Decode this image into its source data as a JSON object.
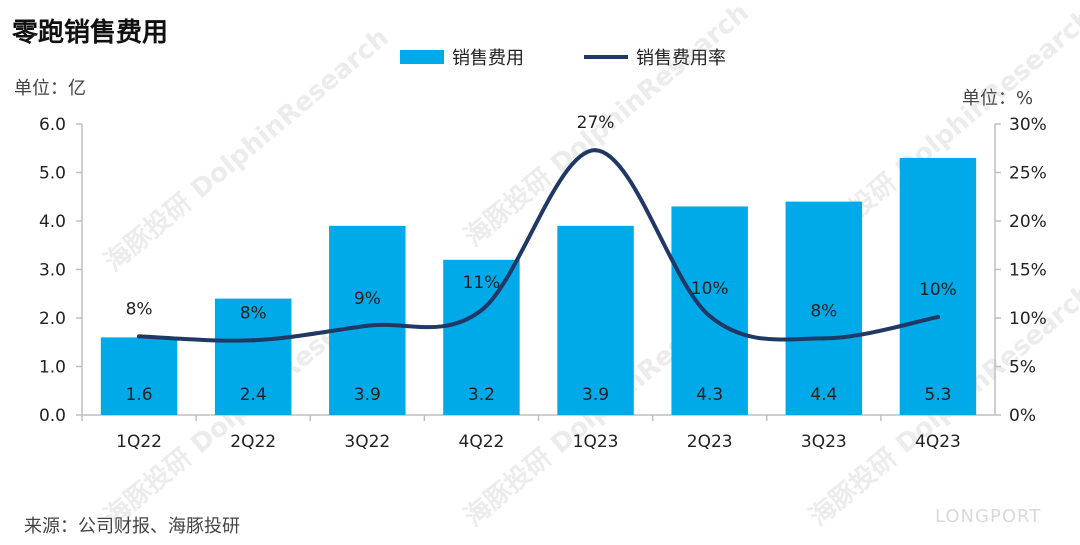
{
  "title": "零跑销售费用",
  "unit_left": "单位：亿",
  "unit_right": "单位：%",
  "source": "来源：公司财报、海豚投研",
  "watermark": "海豚投研 DolphinResearch",
  "brand": "LONGPORT",
  "legend": {
    "bar": "销售费用",
    "line": "销售费用率"
  },
  "colors": {
    "bar": "#00a9e8",
    "line": "#1f3864",
    "axis": "#bfbfbf"
  },
  "chart_data": {
    "type": "bar",
    "categories": [
      "1Q22",
      "2Q22",
      "3Q22",
      "4Q22",
      "1Q23",
      "2Q23",
      "3Q23",
      "4Q23"
    ],
    "series": [
      {
        "name": "销售费用",
        "type": "bar",
        "axis": "left",
        "values": [
          1.6,
          2.4,
          3.9,
          3.2,
          3.9,
          4.3,
          4.4,
          5.3
        ],
        "labels": [
          "1.6",
          "2.4",
          "3.9",
          "3.2",
          "3.9",
          "4.3",
          "4.4",
          "5.3"
        ]
      },
      {
        "name": "销售费用率",
        "type": "line",
        "axis": "right",
        "values": [
          8.1,
          7.7,
          9.2,
          10.8,
          27.3,
          10.2,
          7.9,
          10.1
        ],
        "labels": [
          "8%",
          "8%",
          "9%",
          "11%",
          "27%",
          "10%",
          "8%",
          "10%"
        ]
      }
    ],
    "ylim_left": [
      0,
      6
    ],
    "ylim_right": [
      0,
      30
    ],
    "yticks_left": [
      "0.0",
      "1.0",
      "2.0",
      "3.0",
      "4.0",
      "5.0",
      "6.0"
    ],
    "yticks_right": [
      "0%",
      "5%",
      "10%",
      "15%",
      "20%",
      "25%",
      "30%"
    ],
    "grid": false,
    "legend_position": "top-center"
  }
}
